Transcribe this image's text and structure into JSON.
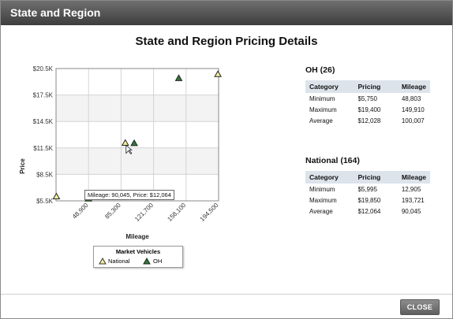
{
  "window": {
    "title": "State and Region"
  },
  "page": {
    "heading": "State and Region Pricing Details"
  },
  "chart_data": {
    "type": "scatter",
    "xlabel": "Mileage",
    "ylabel": "Price",
    "x_ticks": [
      "48,900",
      "85,300",
      "121,700",
      "158,100",
      "194,500"
    ],
    "x_tick_values": [
      48900,
      85300,
      121700,
      158100,
      194500
    ],
    "y_ticks": [
      "$5.5K",
      "$8.5K",
      "$11.5K",
      "$14.5K",
      "$17.5K",
      "$20.5K"
    ],
    "y_tick_values": [
      5500,
      8500,
      11500,
      14500,
      17500,
      20500
    ],
    "xlim": [
      12500,
      194500
    ],
    "ylim": [
      5500,
      20500
    ],
    "grid": true,
    "legend": {
      "title": "Market Vehicles",
      "placement": "bottom"
    },
    "series": [
      {
        "name": "National",
        "marker": "triangle-open",
        "color": "#f4f09a",
        "points": [
          {
            "x": 12905,
            "y": 5995
          },
          {
            "x": 90045,
            "y": 12064
          },
          {
            "x": 193721,
            "y": 19850
          }
        ]
      },
      {
        "name": "OH",
        "marker": "triangle-filled",
        "color": "#2e7d32",
        "points": [
          {
            "x": 48803,
            "y": 5750
          },
          {
            "x": 100007,
            "y": 12028
          },
          {
            "x": 149910,
            "y": 19400
          }
        ]
      }
    ],
    "tooltip": "Mileage: 90,045, Price: $12,064"
  },
  "stats": {
    "headers": [
      "Category",
      "Pricing",
      "Mileage"
    ],
    "oh": {
      "title": "OH (26)",
      "rows": [
        [
          "Minimum",
          "$5,750",
          "48,803"
        ],
        [
          "Maximum",
          "$19,400",
          "149,910"
        ],
        [
          "Average",
          "$12,028",
          "100,007"
        ]
      ]
    },
    "national": {
      "title": "National (164)",
      "rows": [
        [
          "Minimum",
          "$5,995",
          "12,905"
        ],
        [
          "Maximum",
          "$19,850",
          "193,721"
        ],
        [
          "Average",
          "$12,064",
          "90,045"
        ]
      ]
    }
  },
  "footer": {
    "close_label": "CLOSE"
  }
}
